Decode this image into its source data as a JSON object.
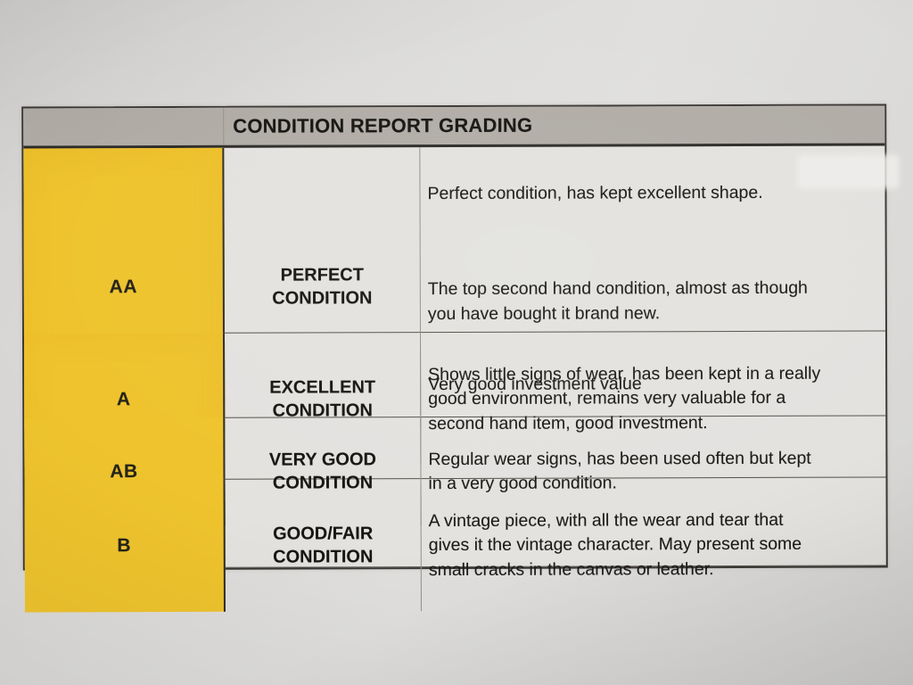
{
  "document": {
    "title": "CONDITION REPORT GRADING",
    "rows": [
      {
        "grade": "AA",
        "condition": "PERFECT\nCONDITION",
        "paragraphs": [
          "Perfect condition, has kept excellent shape.",
          "The top second hand condition, almost as though\nyou have bought it brand new.",
          "Very good investment value"
        ]
      },
      {
        "grade": "A",
        "condition": "EXCELLENT\nCONDITION",
        "paragraphs": [
          "Shows little signs of wear, has been kept in a really\ngood environment, remains very valuable for a\nsecond hand item, good investment."
        ]
      },
      {
        "grade": "AB",
        "condition": "VERY GOOD\nCONDITION",
        "paragraphs": [
          "Regular wear signs, has been used often but kept\nin a very good condition."
        ]
      },
      {
        "grade": "B",
        "condition": "GOOD/FAIR\nCONDITION",
        "paragraphs": [
          "A vintage piece, with all the wear and tear that\ngives it the vintage character. May present some\nsmall cracks in the canvas or leather."
        ]
      }
    ],
    "colors": {
      "grade_cell_yellow": "#eec32d",
      "header_bg": "#b1ada6",
      "cell_bg": "#e3e2df",
      "border_dark": "#3b3834",
      "paper": "#dcdbd9",
      "text": "#1d1c1a"
    }
  }
}
